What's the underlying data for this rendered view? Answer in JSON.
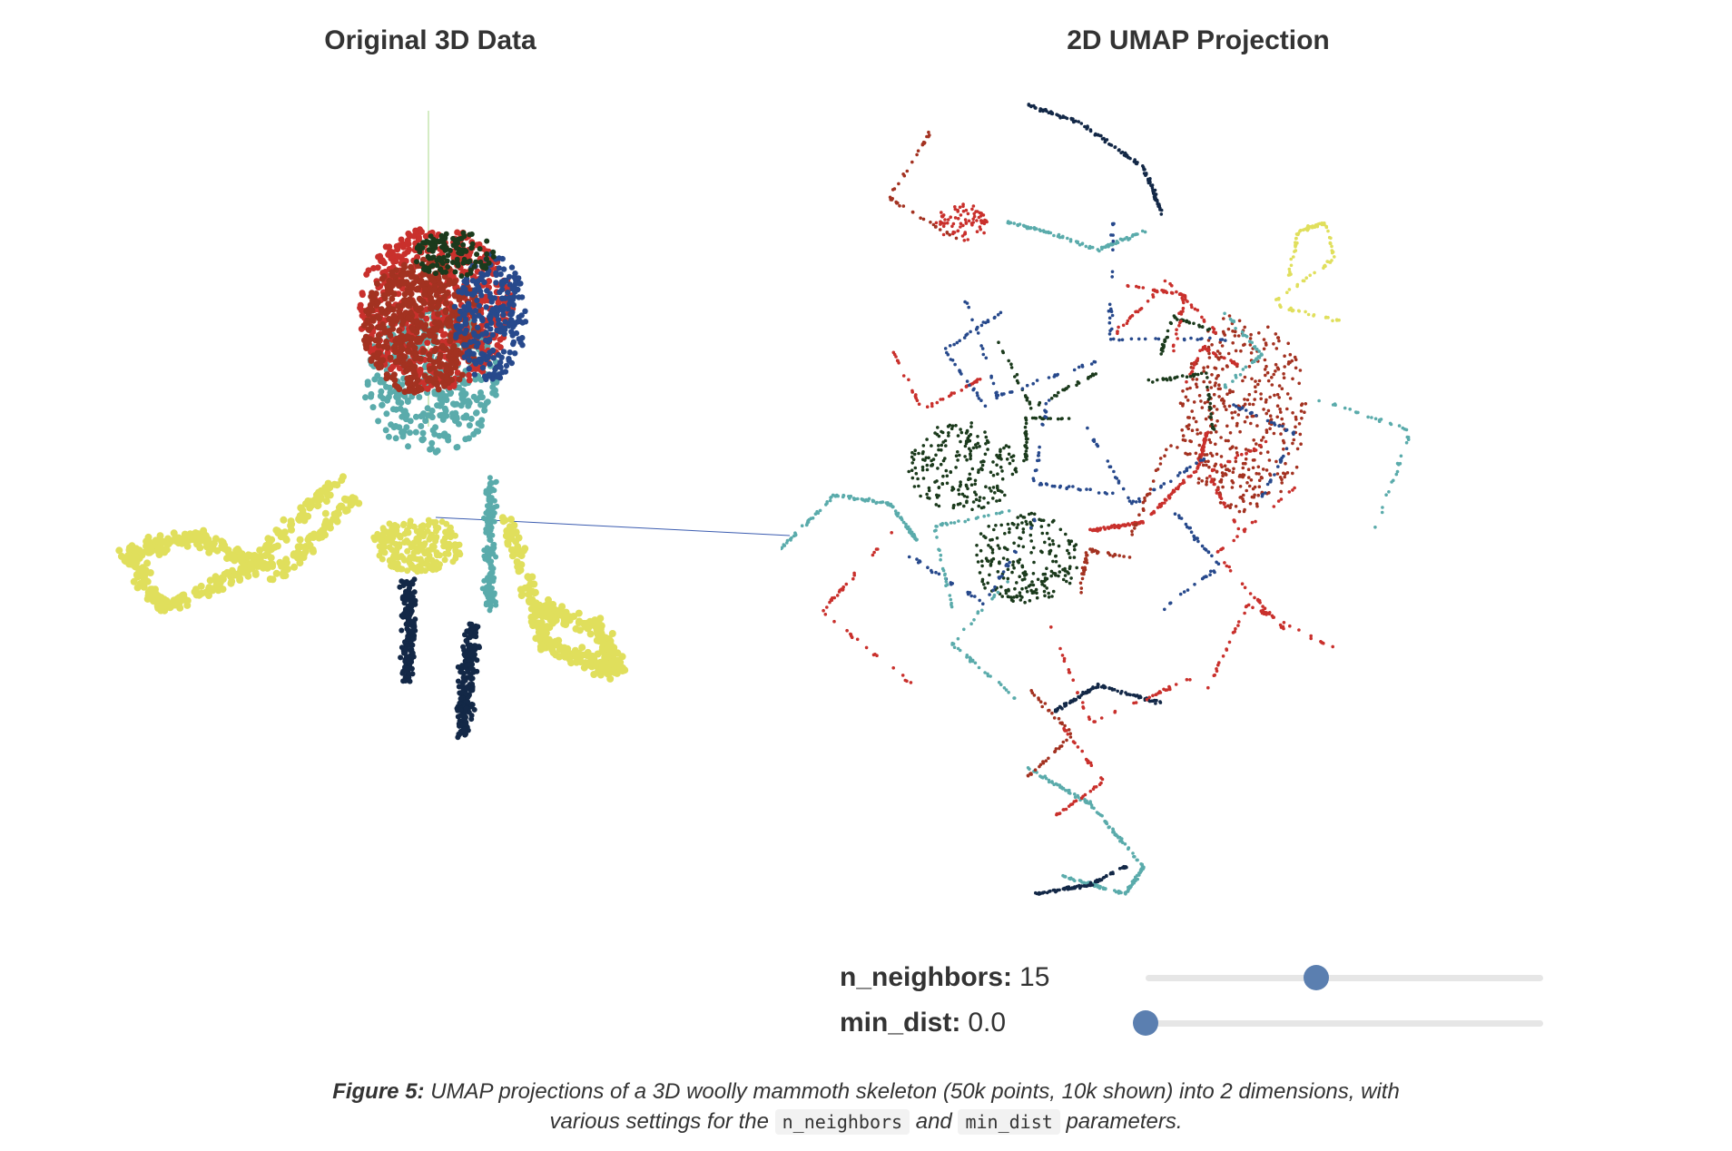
{
  "chart_data": [
    {
      "type": "scatter",
      "title": "Original 3D Data",
      "series_colors": [
        "#e0df5c",
        "#a33221",
        "#c9302c",
        "#5aabab",
        "#132847",
        "#27498c",
        "#1b3a1c"
      ]
    },
    {
      "type": "scatter",
      "title": "2D UMAP Projection",
      "series_colors": [
        "#e0df5c",
        "#a33221",
        "#c9302c",
        "#5aabab",
        "#132847",
        "#27498c",
        "#1b3a1c"
      ]
    }
  ],
  "controls": {
    "n_neighbors": {
      "label": "n_neighbors:",
      "value": "15",
      "fraction": 0.43
    },
    "min_dist": {
      "label": "min_dist:",
      "value": "0.0",
      "fraction": 0.0
    }
  },
  "caption": {
    "figure_label": "Figure 5:",
    "text_1": " UMAP projections of a 3D woolly mammoth skeleton (50k points, 10k shown) into 2 dimensions, with",
    "text_2": "various settings for the ",
    "code_1": "n_neighbors",
    "text_3": " and ",
    "code_2": "min_dist",
    "text_4": " parameters."
  }
}
